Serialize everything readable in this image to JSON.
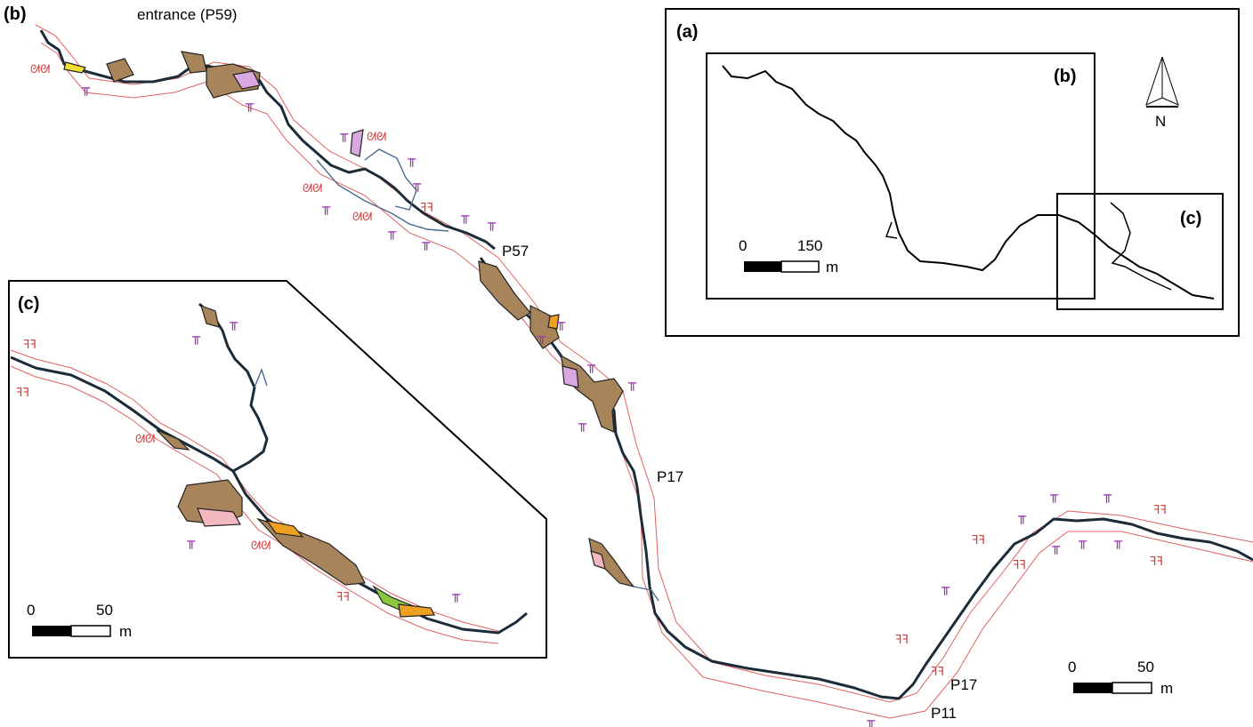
{
  "panels": {
    "b": {
      "label": "(b)"
    },
    "a": {
      "label": "(a)",
      "inset_b_label": "(b)",
      "inset_c_label": "(c)"
    },
    "c": {
      "label": "(c)"
    }
  },
  "place_labels": {
    "entrance": "entrance (P59)",
    "p57": "P57",
    "p17_upper": "P17",
    "p17_lower": "P17",
    "p11": "P11"
  },
  "north_arrow": {
    "letter": "N"
  },
  "scale_bars": {
    "a": {
      "start": "0",
      "end": "150",
      "unit": "m"
    },
    "b": {
      "start": "0",
      "end": "50",
      "unit": "m"
    },
    "c": {
      "start": "0",
      "end": "50",
      "unit": "m"
    }
  },
  "colors": {
    "cave_line": "#1c2b38",
    "wall_outline": "#e06060",
    "sediment_brown": "#a8845a",
    "pink_deposit": "#f2b8c0",
    "lilac_deposit": "#d9a8e0",
    "orange_deposit": "#f0a020",
    "yellow_deposit": "#f2e030",
    "green_deposit": "#8cc63f",
    "symbol_purple": "#9a2fb5",
    "symbol_red": "#d83b3b"
  },
  "legend_symbols": [
    "dripstone-symbol",
    "flowstone-symbol",
    "moonmilk-symbol"
  ]
}
